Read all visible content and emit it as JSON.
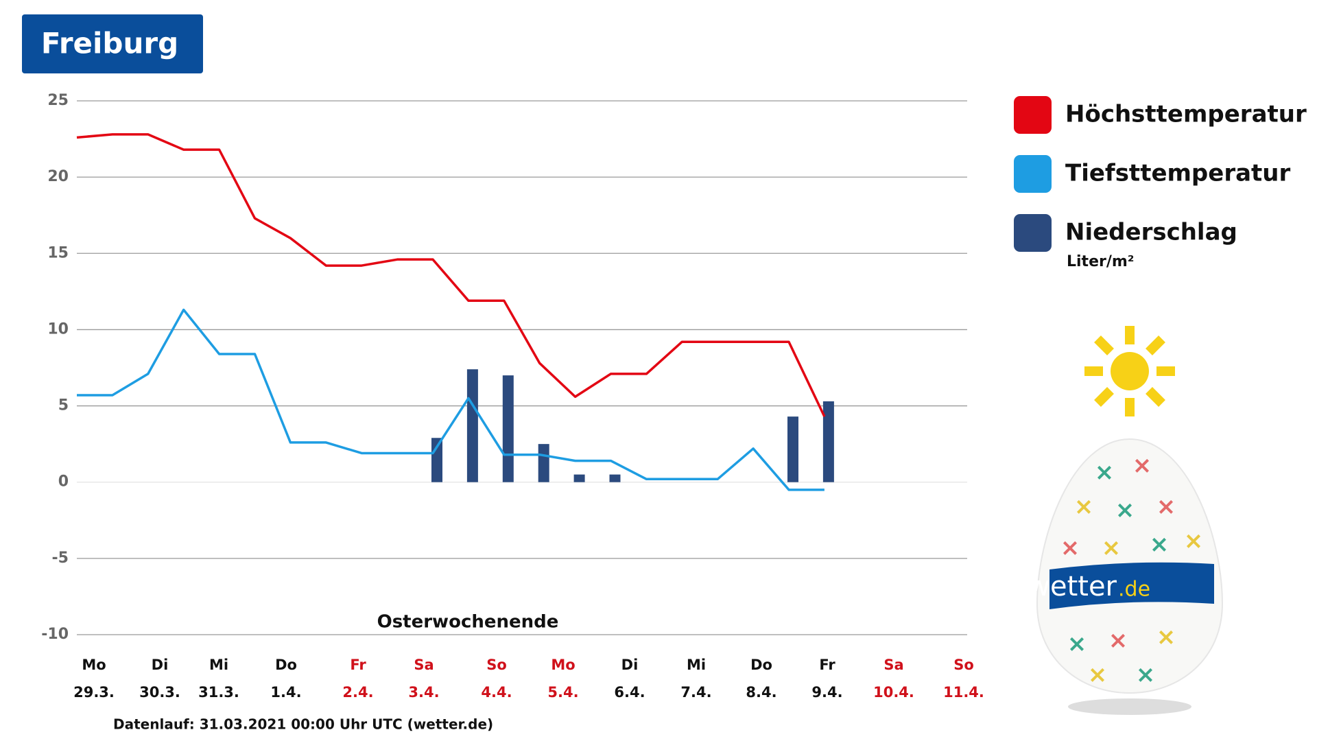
{
  "chart_data": {
    "type": "weather",
    "title": "Freiburg",
    "categories": [
      null,
      null,
      null,
      null,
      null,
      null,
      null,
      null,
      null,
      null,
      null,
      null,
      null,
      null,
      null,
      null,
      null,
      null,
      null,
      null,
      null,
      null
    ],
    "series": [
      {
        "name": "Höchsttemperatur",
        "color": "#e30613",
        "kind": "line",
        "values": [
          22.6,
          22.8,
          22.8,
          21.8,
          21.8,
          17.3,
          16,
          14.2,
          14.2,
          14.6,
          14.6,
          11.9,
          11.9,
          7.8,
          5.6,
          7.1,
          7.1,
          9.2,
          9.2,
          9.2,
          9.2,
          4.3
        ]
      },
      {
        "name": "Tiefsttemperatur",
        "color": "#1e9de2",
        "kind": "line",
        "values": [
          5.7,
          5.7,
          7.1,
          11.3,
          8.4,
          8.4,
          2.6,
          2.6,
          1.9,
          1.9,
          1.9,
          5.5,
          1.8,
          1.8,
          1.4,
          1.4,
          0.2,
          0.2,
          0.2,
          2.2,
          -0.5,
          -0.5
        ]
      },
      {
        "name": "Niederschlag",
        "unit": "Liter/m²",
        "color": "#2b4a7e",
        "kind": "bar",
        "values": [
          null,
          null,
          null,
          null,
          null,
          null,
          null,
          null,
          null,
          null,
          2.9,
          7.4,
          7.0,
          2.5,
          0.5,
          0.5,
          null,
          null,
          null,
          null,
          4.3,
          5.3
        ]
      }
    ],
    "day_labels": [
      {
        "day": "Mo",
        "date": "29.3.",
        "color": "#111"
      },
      {
        "day": "Di",
        "date": "30.3.",
        "color": "#111"
      },
      {
        "day": "Mi",
        "date": "31.3.",
        "color": "#111"
      },
      {
        "day": "Do",
        "date": "1.4.",
        "color": "#111"
      },
      {
        "day": "Fr",
        "date": "2.4.",
        "color": "#d0111b"
      },
      {
        "day": "Sa",
        "date": "3.4.",
        "color": "#d0111b"
      },
      {
        "day": "So",
        "date": "4.4.",
        "color": "#d0111b"
      },
      {
        "day": "Mo",
        "date": "5.4.",
        "color": "#d0111b"
      },
      {
        "day": "Di",
        "date": "6.4.",
        "color": "#111"
      },
      {
        "day": "Mi",
        "date": "7.4.",
        "color": "#111"
      },
      {
        "day": "Do",
        "date": "8.4.",
        "color": "#111"
      },
      {
        "day": "Fr",
        "date": "9.4.",
        "color": "#111"
      },
      {
        "day": "Sa",
        "date": "10.4.",
        "color": "#d0111b"
      },
      {
        "day": "So",
        "date": "11.4.",
        "color": "#d0111b"
      }
    ],
    "annotation": "Osterwochenende",
    "footer": "Datenlauf: 31.03.2021 00:00 Uhr UTC (wetter.de)",
    "ylim": [
      -10,
      25
    ],
    "yticks": [
      -10,
      -5,
      0,
      5,
      10,
      15,
      20,
      25
    ],
    "grid": true,
    "logo": {
      "name": "wetter",
      "tld": ".de"
    }
  }
}
